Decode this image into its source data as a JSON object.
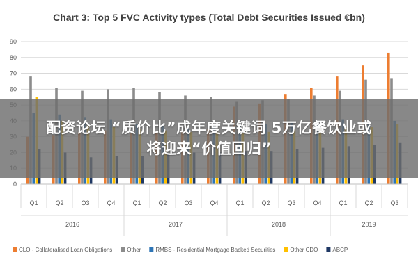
{
  "chart_data": {
    "type": "bar",
    "title": "Chart 3: Top 5 FVC Activity types (Total Debt Securities Issued €bn)",
    "ylim": [
      0,
      90
    ],
    "yticks": [
      0,
      10,
      20,
      30,
      40,
      50,
      60,
      70,
      80,
      90
    ],
    "grid": true,
    "legend_position": "bottom",
    "categories": [
      "Q1",
      "Q2",
      "Q3",
      "Q4",
      "Q1",
      "Q2",
      "Q3",
      "Q4",
      "Q1",
      "Q2",
      "Q3",
      "Q4",
      "Q1",
      "Q2",
      "Q3"
    ],
    "groups": [
      {
        "label": "2016",
        "count": 4
      },
      {
        "label": "2017",
        "count": 4
      },
      {
        "label": "2018",
        "count": 4
      },
      {
        "label": "2019",
        "count": 3
      }
    ],
    "series": [
      {
        "name": "CLO - Collateralised Loan Obligations",
        "color": "#ed7d31",
        "values": [
          30,
          31,
          33,
          34,
          32,
          33,
          33,
          35,
          49,
          51,
          57,
          61,
          68,
          75,
          83
        ]
      },
      {
        "name": "Other",
        "color": "#8c8c8c",
        "values": [
          68,
          61,
          59,
          60,
          61,
          58,
          56,
          55,
          52,
          53,
          54,
          56,
          59,
          66,
          67
        ]
      },
      {
        "name": "RMBS - Residential Mortgage Backed Securities",
        "color": "#2e75b6",
        "values": [
          45,
          44,
          42,
          41,
          38,
          37,
          36,
          37,
          38,
          38,
          39,
          40,
          41,
          40,
          40
        ]
      },
      {
        "name": "Other CDO",
        "color": "#ffc000",
        "values": [
          55,
          40,
          37,
          36,
          35,
          34,
          33,
          33,
          32,
          33,
          35,
          35,
          36,
          36,
          38
        ]
      },
      {
        "name": "ABCP",
        "color": "#1f3864",
        "values": [
          22,
          20,
          17,
          18,
          18,
          19,
          20,
          20,
          21,
          21,
          22,
          23,
          24,
          25,
          26
        ]
      }
    ]
  },
  "overlay": {
    "line1": "配资论坛 “质价比”成年度关键词 5万亿餐饮业或",
    "line2": "将迎来“价值回归”"
  }
}
